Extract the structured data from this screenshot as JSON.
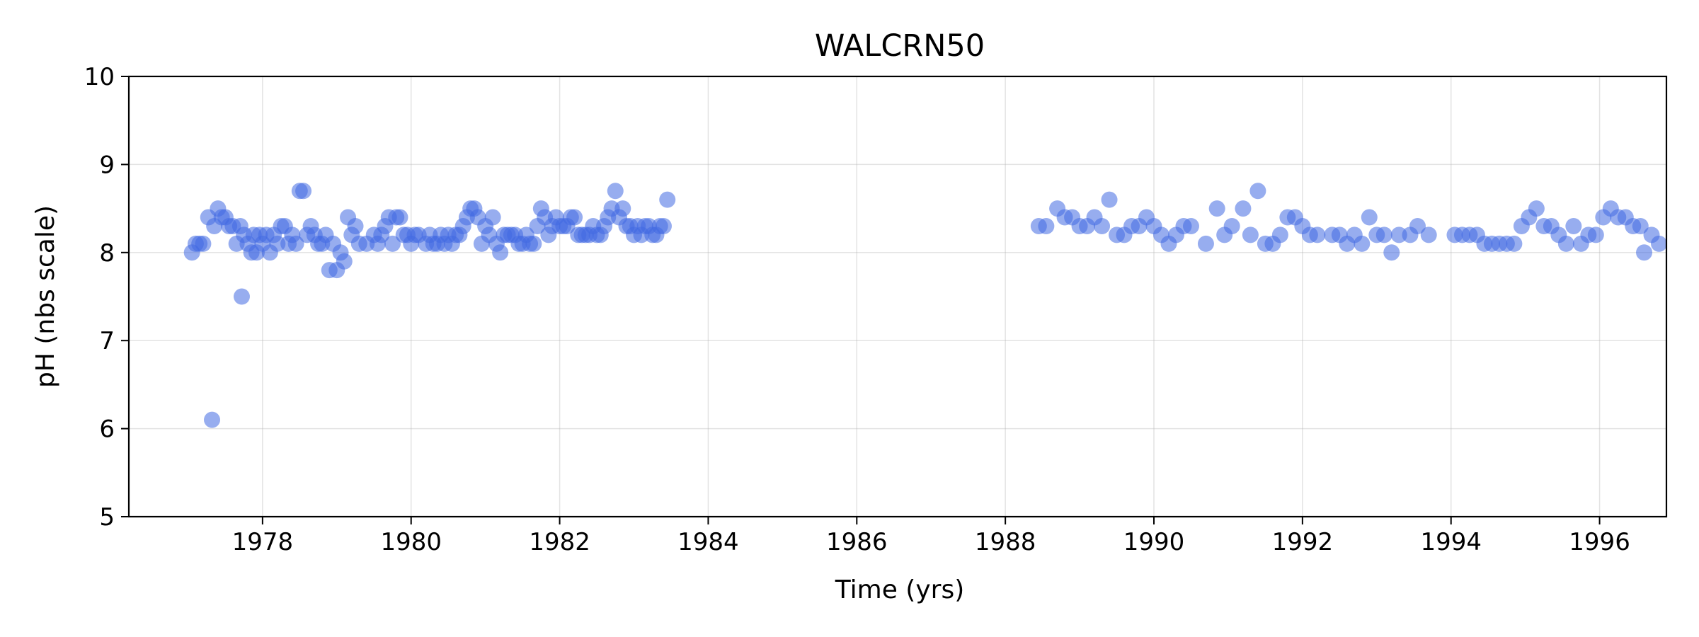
{
  "chart_data": {
    "type": "scatter",
    "title": "WALCRN50",
    "xlabel": "Time (yrs)",
    "ylabel": "pH (nbs scale)",
    "xlim": [
      1976.2,
      1996.9
    ],
    "ylim": [
      5,
      10
    ],
    "xticks": [
      1978,
      1980,
      1982,
      1984,
      1986,
      1988,
      1990,
      1992,
      1994,
      1996
    ],
    "yticks": [
      5,
      6,
      7,
      8,
      9,
      10
    ],
    "grid": true,
    "marker_color": "#4169e1",
    "points": [
      [
        1977.05,
        8.0
      ],
      [
        1977.1,
        8.1
      ],
      [
        1977.15,
        8.1
      ],
      [
        1977.2,
        8.1
      ],
      [
        1977.27,
        8.4
      ],
      [
        1977.32,
        6.1
      ],
      [
        1977.35,
        8.3
      ],
      [
        1977.4,
        8.5
      ],
      [
        1977.45,
        8.4
      ],
      [
        1977.5,
        8.4
      ],
      [
        1977.55,
        8.3
      ],
      [
        1977.6,
        8.3
      ],
      [
        1977.65,
        8.1
      ],
      [
        1977.7,
        8.3
      ],
      [
        1977.72,
        7.5
      ],
      [
        1977.75,
        8.2
      ],
      [
        1977.8,
        8.1
      ],
      [
        1977.85,
        8.0
      ],
      [
        1977.88,
        8.2
      ],
      [
        1977.92,
        8.0
      ],
      [
        1977.96,
        8.2
      ],
      [
        1978.0,
        8.1
      ],
      [
        1978.05,
        8.2
      ],
      [
        1978.1,
        8.0
      ],
      [
        1978.15,
        8.2
      ],
      [
        1978.2,
        8.1
      ],
      [
        1978.25,
        8.3
      ],
      [
        1978.3,
        8.3
      ],
      [
        1978.35,
        8.1
      ],
      [
        1978.4,
        8.2
      ],
      [
        1978.45,
        8.1
      ],
      [
        1978.5,
        8.7
      ],
      [
        1978.55,
        8.7
      ],
      [
        1978.6,
        8.2
      ],
      [
        1978.65,
        8.3
      ],
      [
        1978.7,
        8.2
      ],
      [
        1978.75,
        8.1
      ],
      [
        1978.8,
        8.1
      ],
      [
        1978.85,
        8.2
      ],
      [
        1978.9,
        7.8
      ],
      [
        1978.95,
        8.1
      ],
      [
        1979.0,
        7.8
      ],
      [
        1979.05,
        8.0
      ],
      [
        1979.1,
        7.9
      ],
      [
        1979.15,
        8.4
      ],
      [
        1979.2,
        8.2
      ],
      [
        1979.25,
        8.3
      ],
      [
        1979.3,
        8.1
      ],
      [
        1979.4,
        8.1
      ],
      [
        1979.5,
        8.2
      ],
      [
        1979.55,
        8.1
      ],
      [
        1979.6,
        8.2
      ],
      [
        1979.65,
        8.3
      ],
      [
        1979.7,
        8.4
      ],
      [
        1979.75,
        8.1
      ],
      [
        1979.8,
        8.4
      ],
      [
        1979.85,
        8.4
      ],
      [
        1979.9,
        8.2
      ],
      [
        1979.95,
        8.2
      ],
      [
        1980.0,
        8.1
      ],
      [
        1980.05,
        8.2
      ],
      [
        1980.1,
        8.2
      ],
      [
        1980.2,
        8.1
      ],
      [
        1980.25,
        8.2
      ],
      [
        1980.3,
        8.1
      ],
      [
        1980.35,
        8.1
      ],
      [
        1980.4,
        8.2
      ],
      [
        1980.45,
        8.1
      ],
      [
        1980.5,
        8.2
      ],
      [
        1980.55,
        8.1
      ],
      [
        1980.6,
        8.2
      ],
      [
        1980.65,
        8.2
      ],
      [
        1980.7,
        8.3
      ],
      [
        1980.75,
        8.4
      ],
      [
        1980.8,
        8.5
      ],
      [
        1980.85,
        8.5
      ],
      [
        1980.9,
        8.4
      ],
      [
        1980.95,
        8.1
      ],
      [
        1981.0,
        8.3
      ],
      [
        1981.05,
        8.2
      ],
      [
        1981.1,
        8.4
      ],
      [
        1981.15,
        8.1
      ],
      [
        1981.2,
        8.0
      ],
      [
        1981.25,
        8.2
      ],
      [
        1981.3,
        8.2
      ],
      [
        1981.35,
        8.2
      ],
      [
        1981.4,
        8.2
      ],
      [
        1981.45,
        8.1
      ],
      [
        1981.5,
        8.1
      ],
      [
        1981.55,
        8.2
      ],
      [
        1981.6,
        8.1
      ],
      [
        1981.65,
        8.1
      ],
      [
        1981.7,
        8.3
      ],
      [
        1981.75,
        8.5
      ],
      [
        1981.8,
        8.4
      ],
      [
        1981.85,
        8.2
      ],
      [
        1981.9,
        8.3
      ],
      [
        1981.95,
        8.4
      ],
      [
        1982.0,
        8.3
      ],
      [
        1982.05,
        8.3
      ],
      [
        1982.1,
        8.3
      ],
      [
        1982.15,
        8.4
      ],
      [
        1982.2,
        8.4
      ],
      [
        1982.25,
        8.2
      ],
      [
        1982.3,
        8.2
      ],
      [
        1982.35,
        8.2
      ],
      [
        1982.4,
        8.2
      ],
      [
        1982.45,
        8.3
      ],
      [
        1982.5,
        8.2
      ],
      [
        1982.55,
        8.2
      ],
      [
        1982.6,
        8.3
      ],
      [
        1982.65,
        8.4
      ],
      [
        1982.7,
        8.5
      ],
      [
        1982.75,
        8.7
      ],
      [
        1982.8,
        8.4
      ],
      [
        1982.85,
        8.5
      ],
      [
        1982.9,
        8.3
      ],
      [
        1982.95,
        8.3
      ],
      [
        1983.0,
        8.2
      ],
      [
        1983.05,
        8.3
      ],
      [
        1983.1,
        8.2
      ],
      [
        1983.15,
        8.3
      ],
      [
        1983.2,
        8.3
      ],
      [
        1983.25,
        8.2
      ],
      [
        1983.3,
        8.2
      ],
      [
        1983.35,
        8.3
      ],
      [
        1983.4,
        8.3
      ],
      [
        1983.45,
        8.6
      ],
      [
        1988.45,
        8.3
      ],
      [
        1988.55,
        8.3
      ],
      [
        1988.7,
        8.5
      ],
      [
        1988.8,
        8.4
      ],
      [
        1988.9,
        8.4
      ],
      [
        1989.0,
        8.3
      ],
      [
        1989.1,
        8.3
      ],
      [
        1989.2,
        8.4
      ],
      [
        1989.3,
        8.3
      ],
      [
        1989.4,
        8.6
      ],
      [
        1989.5,
        8.2
      ],
      [
        1989.6,
        8.2
      ],
      [
        1989.7,
        8.3
      ],
      [
        1989.8,
        8.3
      ],
      [
        1989.9,
        8.4
      ],
      [
        1990.0,
        8.3
      ],
      [
        1990.1,
        8.2
      ],
      [
        1990.2,
        8.1
      ],
      [
        1990.3,
        8.2
      ],
      [
        1990.4,
        8.3
      ],
      [
        1990.5,
        8.3
      ],
      [
        1990.7,
        8.1
      ],
      [
        1990.85,
        8.5
      ],
      [
        1990.95,
        8.2
      ],
      [
        1991.05,
        8.3
      ],
      [
        1991.2,
        8.5
      ],
      [
        1991.3,
        8.2
      ],
      [
        1991.4,
        8.7
      ],
      [
        1991.5,
        8.1
      ],
      [
        1991.6,
        8.1
      ],
      [
        1991.7,
        8.2
      ],
      [
        1991.8,
        8.4
      ],
      [
        1991.9,
        8.4
      ],
      [
        1992.0,
        8.3
      ],
      [
        1992.1,
        8.2
      ],
      [
        1992.2,
        8.2
      ],
      [
        1992.4,
        8.2
      ],
      [
        1992.5,
        8.2
      ],
      [
        1992.6,
        8.1
      ],
      [
        1992.7,
        8.2
      ],
      [
        1992.8,
        8.1
      ],
      [
        1992.9,
        8.4
      ],
      [
        1993.0,
        8.2
      ],
      [
        1993.1,
        8.2
      ],
      [
        1993.2,
        8.0
      ],
      [
        1993.3,
        8.2
      ],
      [
        1993.45,
        8.2
      ],
      [
        1993.55,
        8.3
      ],
      [
        1993.7,
        8.2
      ],
      [
        1994.05,
        8.2
      ],
      [
        1994.15,
        8.2
      ],
      [
        1994.25,
        8.2
      ],
      [
        1994.35,
        8.2
      ],
      [
        1994.45,
        8.1
      ],
      [
        1994.55,
        8.1
      ],
      [
        1994.65,
        8.1
      ],
      [
        1994.75,
        8.1
      ],
      [
        1994.85,
        8.1
      ],
      [
        1994.95,
        8.3
      ],
      [
        1995.05,
        8.4
      ],
      [
        1995.15,
        8.5
      ],
      [
        1995.25,
        8.3
      ],
      [
        1995.35,
        8.3
      ],
      [
        1995.45,
        8.2
      ],
      [
        1995.55,
        8.1
      ],
      [
        1995.65,
        8.3
      ],
      [
        1995.75,
        8.1
      ],
      [
        1995.85,
        8.2
      ],
      [
        1995.95,
        8.2
      ],
      [
        1996.05,
        8.4
      ],
      [
        1996.15,
        8.5
      ],
      [
        1996.25,
        8.4
      ],
      [
        1996.35,
        8.4
      ],
      [
        1996.45,
        8.3
      ],
      [
        1996.55,
        8.3
      ],
      [
        1996.6,
        8.0
      ],
      [
        1996.7,
        8.2
      ],
      [
        1996.8,
        8.1
      ]
    ]
  }
}
